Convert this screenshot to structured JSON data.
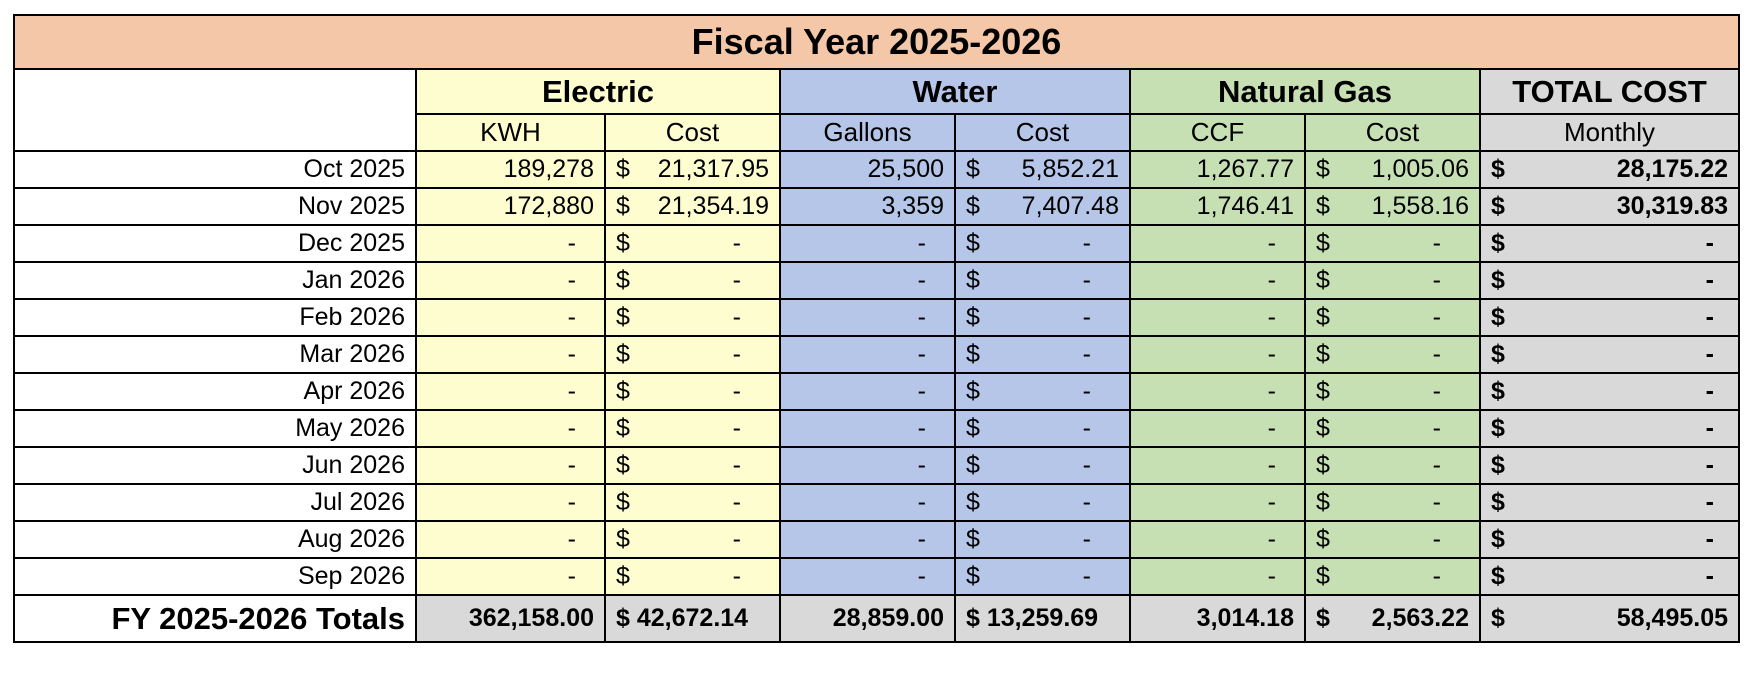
{
  "title": "Fiscal Year 2025-2026",
  "groups": {
    "electric": "Electric",
    "water": "Water",
    "gas": "Natural Gas",
    "total": "TOTAL COST"
  },
  "subheaders": {
    "kwh": "KWH",
    "electric_cost": "Cost",
    "gallons": "Gallons",
    "water_cost": "Cost",
    "ccf": "CCF",
    "gas_cost": "Cost",
    "monthly": "Monthly"
  },
  "currency_symbol": "$",
  "rows": [
    {
      "month": "Oct 2025",
      "kwh": "189,278",
      "e_cost": "21,317.95",
      "gallons": "25,500",
      "w_cost": "5,852.21",
      "ccf": "1,267.77",
      "g_cost": "1,005.06",
      "total": "28,175.22"
    },
    {
      "month": "Nov 2025",
      "kwh": "172,880",
      "e_cost": "21,354.19",
      "gallons": "3,359",
      "w_cost": "7,407.48",
      "ccf": "1,746.41",
      "g_cost": "1,558.16",
      "total": "30,319.83"
    },
    {
      "month": "Dec 2025",
      "kwh": "-",
      "e_cost": "-",
      "gallons": "-",
      "w_cost": "-",
      "ccf": "-",
      "g_cost": "-",
      "total": "-"
    },
    {
      "month": "Jan 2026",
      "kwh": "-",
      "e_cost": "-",
      "gallons": "-",
      "w_cost": "-",
      "ccf": "-",
      "g_cost": "-",
      "total": "-"
    },
    {
      "month": "Feb 2026",
      "kwh": "-",
      "e_cost": "-",
      "gallons": "-",
      "w_cost": "-",
      "ccf": "-",
      "g_cost": "-",
      "total": "-"
    },
    {
      "month": "Mar 2026",
      "kwh": "-",
      "e_cost": "-",
      "gallons": "-",
      "w_cost": "-",
      "ccf": "-",
      "g_cost": "-",
      "total": "-"
    },
    {
      "month": "Apr 2026",
      "kwh": "-",
      "e_cost": "-",
      "gallons": "-",
      "w_cost": "-",
      "ccf": "-",
      "g_cost": "-",
      "total": "-"
    },
    {
      "month": "May 2026",
      "kwh": "-",
      "e_cost": "-",
      "gallons": "-",
      "w_cost": "-",
      "ccf": "-",
      "g_cost": "-",
      "total": "-"
    },
    {
      "month": "Jun 2026",
      "kwh": "-",
      "e_cost": "-",
      "gallons": "-",
      "w_cost": "-",
      "ccf": "-",
      "g_cost": "-",
      "total": "-"
    },
    {
      "month": "Jul 2026",
      "kwh": "-",
      "e_cost": "-",
      "gallons": "-",
      "w_cost": "-",
      "ccf": "-",
      "g_cost": "-",
      "total": "-"
    },
    {
      "month": "Aug 2026",
      "kwh": "-",
      "e_cost": "-",
      "gallons": "-",
      "w_cost": "-",
      "ccf": "-",
      "g_cost": "-",
      "total": "-"
    },
    {
      "month": "Sep 2026",
      "kwh": "-",
      "e_cost": "-",
      "gallons": "-",
      "w_cost": "-",
      "ccf": "-",
      "g_cost": "-",
      "total": "-"
    }
  ],
  "totals": {
    "label": "FY 2025-2026 Totals",
    "kwh": "362,158.00",
    "e_cost": "$ 42,672.14",
    "gallons": "28,859.00",
    "w_cost": "$ 13,259.69",
    "ccf": "3,014.18",
    "g_cost": "2,563.22",
    "total": "58,495.05"
  }
}
